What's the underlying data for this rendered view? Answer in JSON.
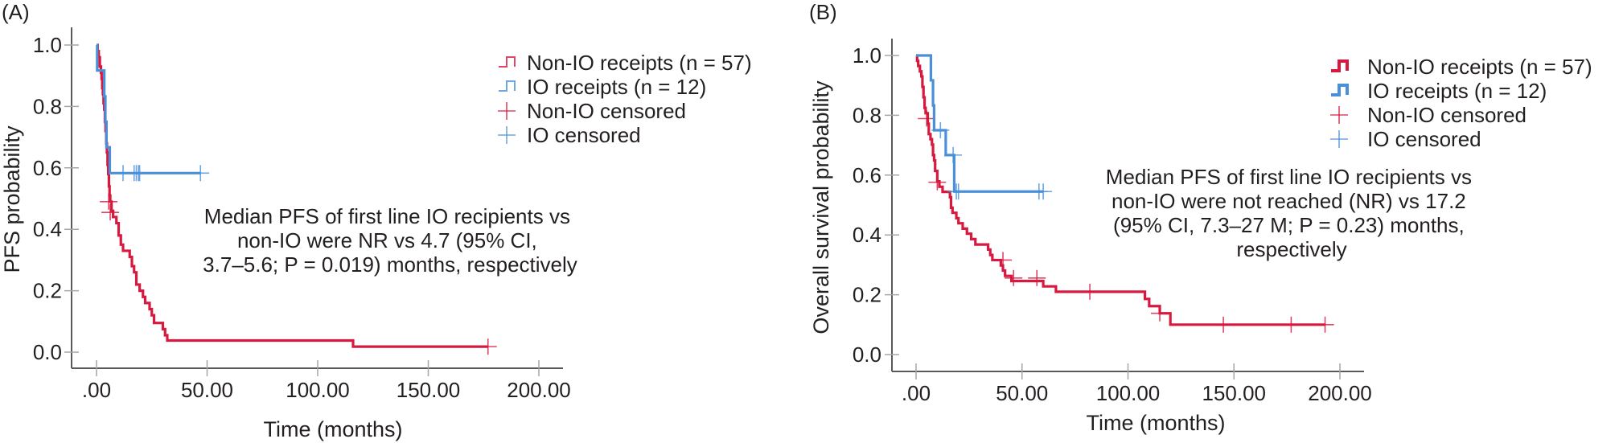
{
  "figure": {
    "colors": {
      "non_io": "#d7193f",
      "io": "#4a90d9",
      "axis": "#595959",
      "tick": "#a6a6a6",
      "text": "#231f20"
    }
  },
  "chart_data": [
    {
      "type": "line",
      "subtype": "kaplan-meier",
      "panel_label": "(A)",
      "title": "",
      "xlabel": "Time (months)",
      "ylabel": "PFS probability",
      "xlim": [
        0,
        200
      ],
      "ylim": [
        0,
        1.0
      ],
      "xticks": [
        0,
        50,
        100,
        150,
        200
      ],
      "xtick_labels": [
        ".00",
        "50.00",
        "100.00",
        "150.00",
        "200.00"
      ],
      "yticks": [
        0,
        0.2,
        0.4,
        0.6,
        0.8,
        1.0
      ],
      "ytick_labels": [
        "0.0",
        "0.2",
        "0.4",
        "0.6",
        "0.8",
        "1.0"
      ],
      "grid": false,
      "legend_position": "top-right",
      "legend": [
        {
          "label": "Non-IO receipts (n = 57)",
          "kind": "step",
          "series": "non_io"
        },
        {
          "label": "IO receipts (n = 12)",
          "kind": "step",
          "series": "io"
        },
        {
          "label": "Non-IO censored",
          "kind": "censor",
          "series": "non_io"
        },
        {
          "label": "IO censored",
          "kind": "censor",
          "series": "io"
        }
      ],
      "annotation": [
        "Median PFS of first line IO recipients vs",
        "non-IO were NR vs 4.7 (95% CI,",
        "3.7–5.6; P = 0.019) months, respectively"
      ],
      "series": [
        {
          "name": "Non-IO receipts (n = 57)",
          "key": "non_io",
          "steps": [
            [
              0,
              1.0
            ],
            [
              0.5,
              0.98
            ],
            [
              1,
              0.96
            ],
            [
              1.5,
              0.93
            ],
            [
              2,
              0.91
            ],
            [
              2.3,
              0.89
            ],
            [
              2.6,
              0.86
            ],
            [
              2.9,
              0.84
            ],
            [
              3.2,
              0.81
            ],
            [
              3.5,
              0.79
            ],
            [
              3.8,
              0.75
            ],
            [
              4.1,
              0.72
            ],
            [
              4.4,
              0.68
            ],
            [
              4.7,
              0.65
            ],
            [
              5,
              0.61
            ],
            [
              5.3,
              0.58
            ],
            [
              5.6,
              0.54
            ],
            [
              5.9,
              0.51
            ],
            [
              6.2,
              0.49
            ],
            [
              6.8,
              0.46
            ],
            [
              7.5,
              0.44
            ],
            [
              9,
              0.42
            ],
            [
              10,
              0.38
            ],
            [
              11,
              0.35
            ],
            [
              12,
              0.33
            ],
            [
              15,
              0.31
            ],
            [
              16,
              0.28
            ],
            [
              17,
              0.26
            ],
            [
              18,
              0.22
            ],
            [
              19.5,
              0.2
            ],
            [
              21,
              0.18
            ],
            [
              22,
              0.16
            ],
            [
              24,
              0.14
            ],
            [
              25,
              0.12
            ],
            [
              26,
              0.095
            ],
            [
              30,
              0.075
            ],
            [
              31,
              0.055
            ],
            [
              32,
              0.038
            ],
            [
              116,
              0.018
            ]
          ],
          "end": 177,
          "censored": [
            [
              5.5,
              0.49
            ],
            [
              6.2,
              0.455
            ],
            [
              177,
              0.018
            ]
          ]
        },
        {
          "name": "IO receipts (n = 12)",
          "key": "io",
          "steps": [
            [
              0,
              1.0
            ],
            [
              0.3,
              0.917
            ],
            [
              3.5,
              0.833
            ],
            [
              4,
              0.75
            ],
            [
              4.5,
              0.667
            ],
            [
              6,
              0.583
            ]
          ],
          "end": 47,
          "censored": [
            [
              12,
              0.583
            ],
            [
              17,
              0.583
            ],
            [
              18,
              0.583
            ],
            [
              19,
              0.583
            ],
            [
              19.5,
              0.583
            ],
            [
              47,
              0.583
            ]
          ]
        }
      ]
    },
    {
      "type": "line",
      "subtype": "kaplan-meier",
      "panel_label": "(B)",
      "title": "",
      "xlabel": "Time (months)",
      "ylabel": "Overall survival probability",
      "xlim": [
        0,
        200
      ],
      "ylim": [
        0,
        1.0
      ],
      "xticks": [
        0,
        50,
        100,
        150,
        200
      ],
      "xtick_labels": [
        ".00",
        "50.00",
        "100.00",
        "150.00",
        "200.00"
      ],
      "yticks": [
        0,
        0.2,
        0.4,
        0.6,
        0.8,
        1.0
      ],
      "ytick_labels": [
        "0.0",
        "0.2",
        "0.4",
        "0.6",
        "0.8",
        "1.0"
      ],
      "grid": false,
      "legend_position": "top-right",
      "legend": [
        {
          "label": "Non-IO receipts (n = 57)",
          "kind": "step",
          "series": "non_io"
        },
        {
          "label": "IO receipts (n = 12)",
          "kind": "step",
          "series": "io"
        },
        {
          "label": "Non-IO censored",
          "kind": "censor",
          "series": "non_io"
        },
        {
          "label": "IO censored",
          "kind": "censor",
          "series": "io"
        }
      ],
      "annotation": [
        "Median PFS of first line IO recipients vs",
        "non-IO were not reached (NR) vs 17.2",
        "(95% CI, 7.3–27 M; P = 0.23) months,",
        "respectively"
      ],
      "series": [
        {
          "name": "Non-IO receipts (n = 57)",
          "key": "non_io",
          "steps": [
            [
              0,
              1.0
            ],
            [
              0.5,
              0.982
            ],
            [
              1,
              0.965
            ],
            [
              1.8,
              0.947
            ],
            [
              2.5,
              0.93
            ],
            [
              3,
              0.895
            ],
            [
              3.5,
              0.86
            ],
            [
              4,
              0.825
            ],
            [
              4.5,
              0.807
            ],
            [
              5.5,
              0.772
            ],
            [
              6,
              0.737
            ],
            [
              6.8,
              0.72
            ],
            [
              7.5,
              0.702
            ],
            [
              8,
              0.667
            ],
            [
              8.5,
              0.649
            ],
            [
              9,
              0.614
            ],
            [
              10,
              0.579
            ],
            [
              11,
              0.561
            ],
            [
              12.5,
              0.544
            ],
            [
              16,
              0.526
            ],
            [
              16.5,
              0.491
            ],
            [
              17.2,
              0.474
            ],
            [
              19,
              0.456
            ],
            [
              20,
              0.439
            ],
            [
              22,
              0.421
            ],
            [
              24,
              0.404
            ],
            [
              26,
              0.386
            ],
            [
              28,
              0.368
            ],
            [
              34,
              0.351
            ],
            [
              35,
              0.333
            ],
            [
              36,
              0.316
            ],
            [
              40,
              0.298
            ],
            [
              41,
              0.281
            ],
            [
              42,
              0.263
            ],
            [
              45,
              0.246
            ],
            [
              60,
              0.228
            ],
            [
              66,
              0.21
            ],
            [
              108,
              0.186
            ],
            [
              110,
              0.162
            ],
            [
              115,
              0.138
            ],
            [
              120,
              0.1
            ]
          ],
          "end": 193,
          "censored": [
            [
              5,
              0.789
            ],
            [
              10,
              0.576
            ],
            [
              41,
              0.316
            ],
            [
              46,
              0.256
            ],
            [
              57,
              0.256
            ],
            [
              82,
              0.21
            ],
            [
              115,
              0.138
            ],
            [
              145,
              0.1
            ],
            [
              177,
              0.1
            ],
            [
              193,
              0.1
            ]
          ]
        },
        {
          "name": "IO receipts (n = 12)",
          "key": "io",
          "steps": [
            [
              0,
              1.0
            ],
            [
              7,
              0.917
            ],
            [
              8,
              0.833
            ],
            [
              8.5,
              0.75
            ],
            [
              14,
              0.667
            ],
            [
              18,
              0.545
            ]
          ],
          "end": 60,
          "censored": [
            [
              11.5,
              0.75
            ],
            [
              17.5,
              0.667
            ],
            [
              19,
              0.545
            ],
            [
              20,
              0.545
            ],
            [
              58,
              0.545
            ],
            [
              60,
              0.545
            ]
          ]
        }
      ]
    }
  ]
}
